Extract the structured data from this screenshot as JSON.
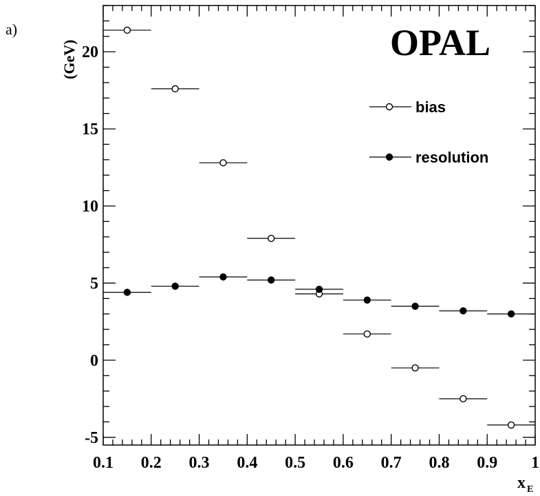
{
  "panel_label": "a)",
  "brand_label": "OPAL",
  "chart_data": {
    "type": "scatter",
    "title": "",
    "xlabel": "x",
    "xlabel_subscript": "E",
    "ylabel": "(GeV)",
    "xlim": [
      0.1,
      1.0
    ],
    "ylim": [
      -5.5,
      23
    ],
    "x_ticks": [
      0.1,
      0.2,
      0.3,
      0.4,
      0.5,
      0.6,
      0.7,
      0.8,
      0.9,
      1.0
    ],
    "x_tick_labels": [
      "0.1",
      "0.2",
      "0.3",
      "0.4",
      "0.5",
      "0.6",
      "0.7",
      "0.8",
      "0.9",
      "1"
    ],
    "y_ticks": [
      -5,
      0,
      5,
      10,
      15,
      20
    ],
    "y_tick_labels": [
      "-5",
      "0",
      "5",
      "10",
      "15",
      "20"
    ],
    "grid": false,
    "legend_position": "top-right",
    "series": [
      {
        "name": "bias",
        "marker": "open-circle",
        "x": [
          0.15,
          0.25,
          0.35,
          0.45,
          0.55,
          0.65,
          0.75,
          0.85,
          0.95
        ],
        "x_err": 0.05,
        "y": [
          21.4,
          17.6,
          12.8,
          7.9,
          4.3,
          1.7,
          -0.5,
          -2.5,
          -4.2
        ]
      },
      {
        "name": "resolution",
        "marker": "filled-circle",
        "x": [
          0.15,
          0.25,
          0.35,
          0.45,
          0.55,
          0.65,
          0.75,
          0.85,
          0.95
        ],
        "x_err": 0.05,
        "y": [
          4.4,
          4.8,
          5.4,
          5.2,
          4.6,
          3.9,
          3.5,
          3.2,
          3.0
        ]
      }
    ]
  },
  "colors": {
    "axis": "#000000",
    "marker": "#000000",
    "background": "#ffffff"
  }
}
